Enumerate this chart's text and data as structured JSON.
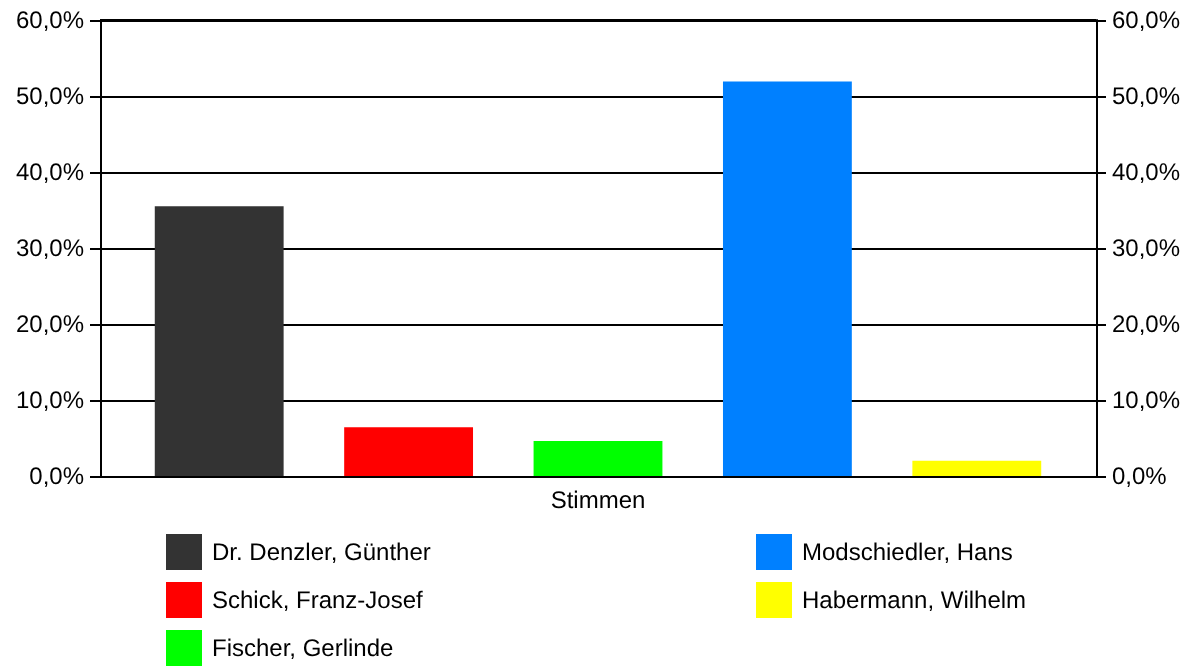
{
  "chart_data": {
    "type": "bar",
    "categories": [
      "Stimmen"
    ],
    "series": [
      {
        "name": "Dr. Denzler, Günther",
        "color": "#333333",
        "values": [
          35.5
        ]
      },
      {
        "name": "Schick, Franz-Josef",
        "color": "#ff0000",
        "values": [
          6.4
        ]
      },
      {
        "name": "Fischer, Gerlinde",
        "color": "#00ff00",
        "values": [
          4.6
        ]
      },
      {
        "name": "Modschiedler, Hans",
        "color": "#0080ff",
        "values": [
          51.9
        ]
      },
      {
        "name": "Habermann, Wilhelm",
        "color": "#ffff00",
        "values": [
          2.0
        ]
      }
    ],
    "ylim": [
      0,
      60
    ],
    "yticks": [
      {
        "value": 0,
        "label": "0,0%"
      },
      {
        "value": 10,
        "label": "10,0%"
      },
      {
        "value": 20,
        "label": "20,0%"
      },
      {
        "value": 30,
        "label": "30,0%"
      },
      {
        "value": 40,
        "label": "40,0%"
      },
      {
        "value": 50,
        "label": "50,0%"
      },
      {
        "value": 60,
        "label": "60,0%"
      }
    ],
    "grid": "y",
    "legend": "bottom"
  }
}
